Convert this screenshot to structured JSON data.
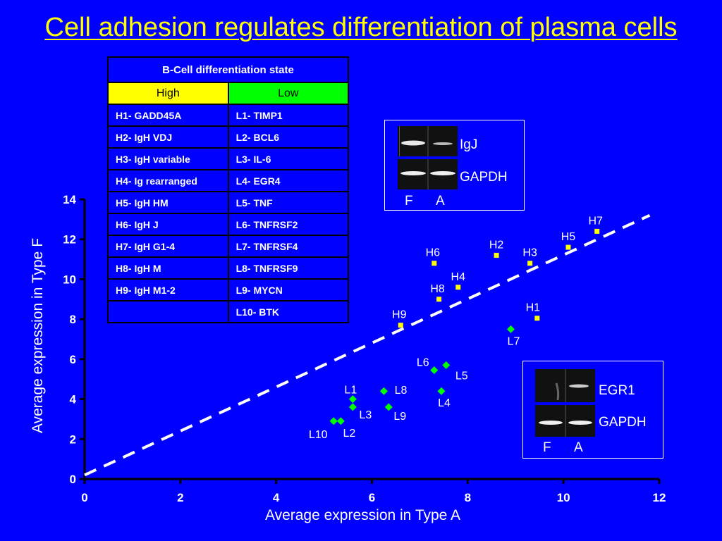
{
  "title": "Cell adhesion regulates differentiation of plasma cells",
  "table": {
    "header": "B-Cell differentiation state",
    "col_high": "High",
    "col_low": "Low",
    "rows": [
      {
        "high": "H1- GADD45A",
        "low": "L1- TIMP1"
      },
      {
        "high": "H2- IgH VDJ",
        "low": "L2- BCL6"
      },
      {
        "high": "H3- IgH variable",
        "low": "L3- IL-6"
      },
      {
        "high": "H4- Ig rearranged",
        "low": "L4- EGR4"
      },
      {
        "high": "H5- IgH HM",
        "low": "L5- TNF"
      },
      {
        "high": "H6- IgH J",
        "low": "L6- TNFRSF2"
      },
      {
        "high": "H7- IgH G1-4",
        "low": "L7- TNFRSF4"
      },
      {
        "high": "H8- IgH M",
        "low": "L8- TNFRSF9"
      },
      {
        "high": "H9- IgH M1-2",
        "low": "L9- MYCN"
      },
      {
        "high": "",
        "low": "L10- BTK"
      }
    ]
  },
  "gel_top": {
    "gene": "IgJ",
    "control": "GAPDH",
    "lanes": [
      "F",
      "A"
    ]
  },
  "gel_bottom": {
    "gene": "EGR1",
    "control": "GAPDH",
    "lanes": [
      "F",
      "A"
    ]
  },
  "colors": {
    "background": "#0000ff",
    "high_marker": "#ffff00",
    "low_marker": "#00ff00",
    "title": "#ffff00"
  },
  "chart_data": {
    "type": "scatter",
    "xlabel": "Average expression in Type A",
    "ylabel": "Average expression in Type F",
    "xlim": [
      0,
      12
    ],
    "ylim": [
      0,
      14
    ],
    "xticks": [
      "0",
      "2",
      "4",
      "6",
      "8",
      "10",
      "12"
    ],
    "yticks": [
      "0",
      "2",
      "4",
      "6",
      "8",
      "10",
      "12",
      "14"
    ],
    "reference_line": {
      "style": "dashed",
      "from": [
        0,
        0.2
      ],
      "to": [
        11.8,
        13.2
      ]
    },
    "series": [
      {
        "marker": "square",
        "color": "#ffff00",
        "points": [
          {
            "label": "H1",
            "x": 9.45,
            "y": 8.05
          },
          {
            "label": "H2",
            "x": 8.6,
            "y": 11.2
          },
          {
            "label": "H3",
            "x": 9.3,
            "y": 10.8
          },
          {
            "label": "H4",
            "x": 7.8,
            "y": 9.6
          },
          {
            "label": "H5",
            "x": 10.1,
            "y": 11.6
          },
          {
            "label": "H6",
            "x": 7.3,
            "y": 10.8
          },
          {
            "label": "H7",
            "x": 10.7,
            "y": 12.4
          },
          {
            "label": "H8",
            "x": 7.4,
            "y": 9.0
          },
          {
            "label": "H9",
            "x": 6.6,
            "y": 7.7
          }
        ]
      },
      {
        "marker": "diamond",
        "color": "#00ff00",
        "points": [
          {
            "label": "L1",
            "x": 5.6,
            "y": 4.0
          },
          {
            "label": "L2",
            "x": 5.35,
            "y": 2.9
          },
          {
            "label": "L3",
            "x": 5.6,
            "y": 3.6
          },
          {
            "label": "L4",
            "x": 7.45,
            "y": 4.4
          },
          {
            "label": "L5",
            "x": 7.55,
            "y": 5.7
          },
          {
            "label": "L6",
            "x": 7.3,
            "y": 5.45
          },
          {
            "label": "L7",
            "x": 8.9,
            "y": 7.5
          },
          {
            "label": "L8",
            "x": 6.25,
            "y": 4.4
          },
          {
            "label": "L9",
            "x": 6.35,
            "y": 3.6
          },
          {
            "label": "L10",
            "x": 5.2,
            "y": 2.9
          }
        ]
      }
    ]
  }
}
